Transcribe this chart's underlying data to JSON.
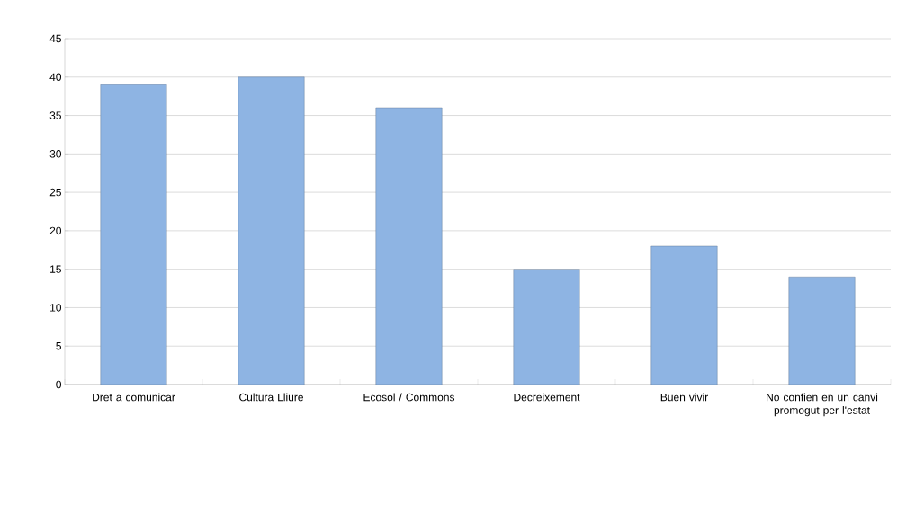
{
  "chart_data": {
    "type": "bar",
    "categories": [
      "Dret a comunicar",
      "Cultura Lliure",
      "Ecosol / Commons",
      "Decreixement",
      "Buen vivir",
      "No confien en un canvi promogut per l'estat"
    ],
    "values": [
      39,
      40,
      36,
      15,
      18,
      14
    ],
    "color": "#8eb4e3",
    "ylim": [
      0,
      45
    ],
    "yticks": [
      0,
      5,
      10,
      15,
      20,
      25,
      30,
      35,
      40,
      45
    ],
    "grid": "y"
  }
}
